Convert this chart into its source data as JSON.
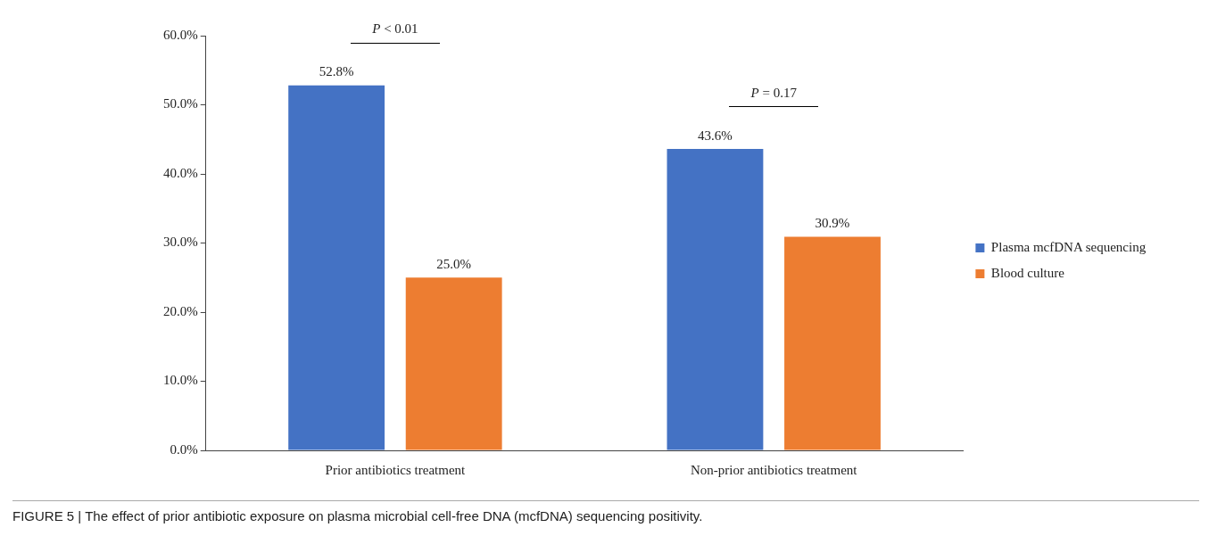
{
  "chart_data": {
    "type": "bar",
    "categories": [
      "Prior antibiotics treatment",
      "Non-prior antibiotics treatment"
    ],
    "series": [
      {
        "name": "Plasma mcfDNA sequencing",
        "color": "#4472c4",
        "values": [
          52.8,
          43.6
        ],
        "value_labels": [
          "52.8%",
          "43.6%"
        ]
      },
      {
        "name": "Blood culture",
        "color": "#ed7d31",
        "values": [
          25.0,
          30.9
        ],
        "value_labels": [
          "25.0%",
          "30.9%"
        ]
      }
    ],
    "ylim": [
      0,
      60
    ],
    "yticks": [
      {
        "value": 0,
        "label": "0.0%"
      },
      {
        "value": 10,
        "label": "10.0%"
      },
      {
        "value": 20,
        "label": "20.0%"
      },
      {
        "value": 30,
        "label": "30.0%"
      },
      {
        "value": 40,
        "label": "40.0%"
      },
      {
        "value": 50,
        "label": "50.0%"
      },
      {
        "value": 60,
        "label": "60.0%"
      }
    ],
    "grid": false,
    "legend": "right",
    "annotations": [
      "P < 0.01",
      "P = 0.17",
      "FIGURE 5 | The effect of prior antibiotic exposure on plasma microbial cell-free DNA (mcfDNA) sequencing positivity."
    ]
  }
}
